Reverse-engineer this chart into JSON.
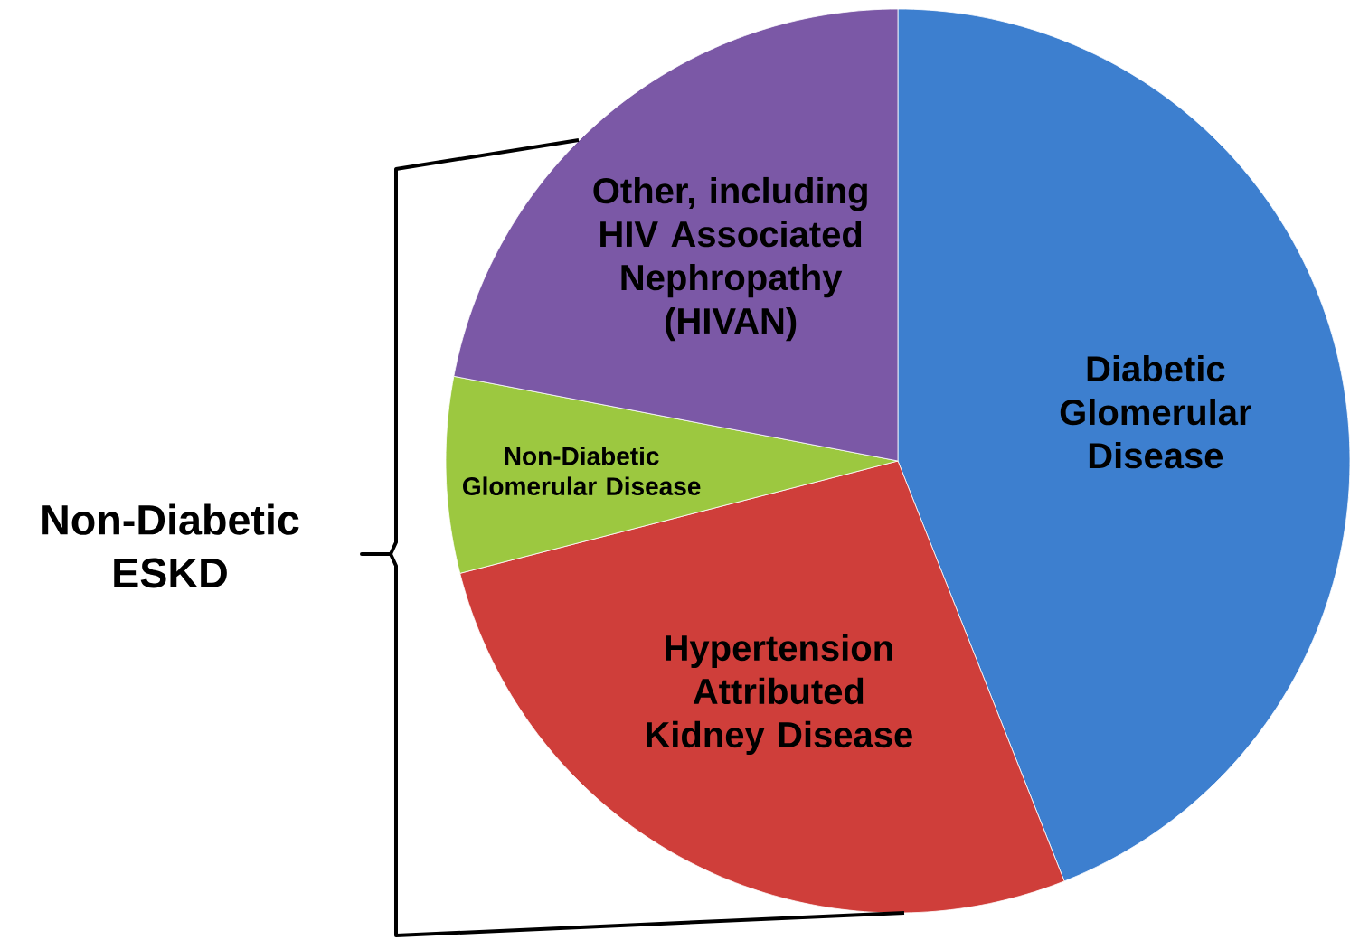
{
  "chart_data": {
    "type": "pie",
    "categories": [
      "Diabetic Glomerular Disease",
      "Hypertension Attributed Kidney Disease",
      "Non-Diabetic Glomerular Disease",
      "Other, including HIV Associated Nephropathy (HIVAN)"
    ],
    "values": [
      44,
      27,
      7,
      22
    ],
    "colors": [
      "#3d7fcf",
      "#cf3e3a",
      "#9cc840",
      "#7b58a6"
    ],
    "annotations": [
      "Non-Diabetic ESKD"
    ]
  }
}
